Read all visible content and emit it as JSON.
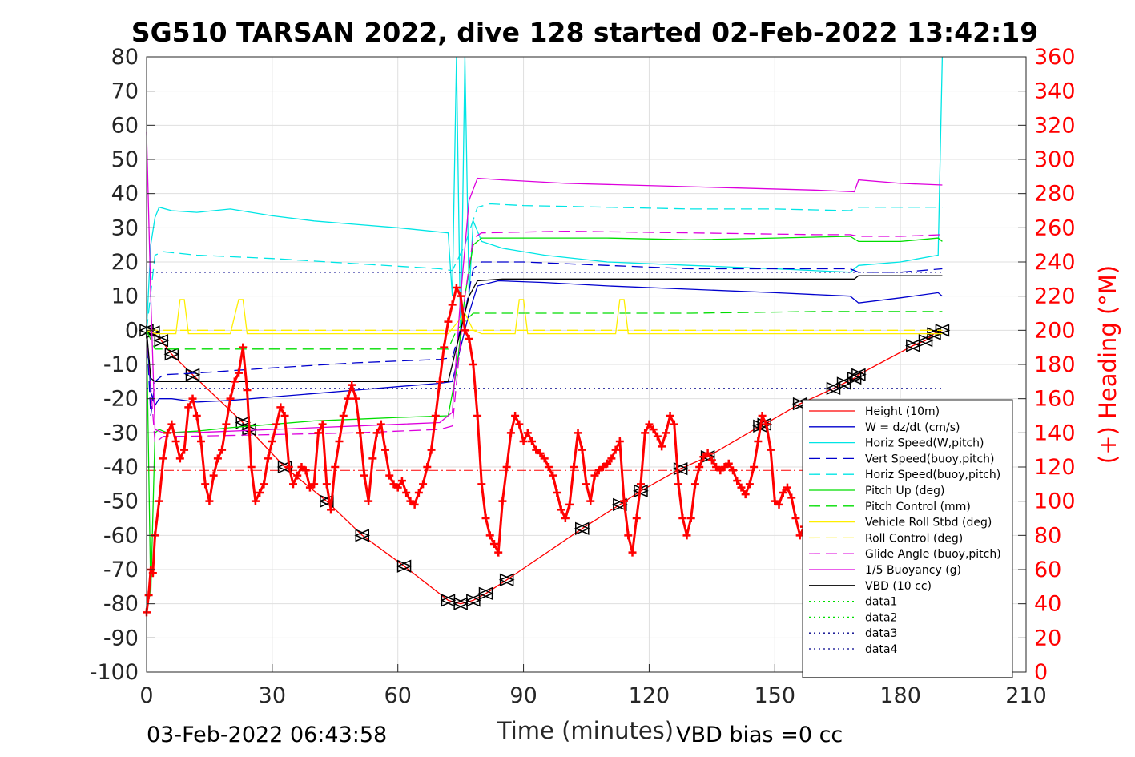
{
  "chart_data": {
    "type": "line",
    "title": "SG510 TARSAN 2022, dive 128 started 02-Feb-2022 13:42:19",
    "xlabel": "Time (minutes)",
    "ylabel_right": "(+) Heading (°M)",
    "xlim": [
      0,
      210
    ],
    "ylim": [
      -100,
      80
    ],
    "ylim_right": [
      0,
      360
    ],
    "x_ticks": [
      0,
      30,
      60,
      90,
      120,
      150,
      180,
      210
    ],
    "y_ticks": [
      -100,
      -90,
      -80,
      -70,
      -60,
      -50,
      -40,
      -30,
      -20,
      -10,
      0,
      10,
      20,
      30,
      40,
      50,
      60,
      70,
      80
    ],
    "y_ticks_right": [
      0,
      20,
      40,
      60,
      80,
      100,
      120,
      140,
      160,
      180,
      200,
      220,
      240,
      260,
      280,
      300,
      320,
      340,
      360
    ],
    "grid": true,
    "legend_position": "bottom-right",
    "footer_left": "03-Feb-2022 06:43:58",
    "footer_right": "VBD bias =0 cc",
    "series": [
      {
        "name": "Height (10m)",
        "color": "#ff0000",
        "style": "solid",
        "marker": "triangle",
        "x": [
          0,
          1.5,
          3.5,
          6,
          11,
          23,
          24.5,
          33,
          43,
          51.5,
          61.5,
          72,
          75,
          78,
          81,
          86,
          104,
          113,
          118,
          127.5,
          134,
          146.5,
          147.5,
          156,
          164,
          166.5,
          169,
          170,
          183,
          186,
          188,
          190
        ],
        "y": [
          0,
          -0.5,
          -3,
          -7,
          -13,
          -27,
          -29,
          -40,
          -50,
          -60,
          -69,
          -79,
          -80,
          -79,
          -77,
          -73,
          -58,
          -51,
          -47,
          -40.5,
          -37,
          -28,
          -27.5,
          -21.5,
          -17,
          -15.5,
          -14,
          -13,
          -4.5,
          -3,
          -1,
          0
        ]
      },
      {
        "name": "W = dz/dt (cm/s)",
        "color": "#0000cd",
        "style": "solid",
        "x": [
          0,
          1,
          2,
          3,
          6,
          12,
          20,
          30,
          40,
          50,
          60,
          70,
          73,
          75,
          77,
          79,
          84,
          95,
          110,
          130,
          150,
          168,
          170,
          180,
          189,
          190
        ],
        "y": [
          0,
          -18,
          -22,
          -20,
          -20,
          -21,
          -20.5,
          -19.5,
          -18.5,
          -17.5,
          -16.5,
          -15.5,
          -15,
          -5,
          5,
          13,
          14.5,
          14,
          13,
          12,
          11,
          10,
          8,
          9.5,
          11,
          10
        ]
      },
      {
        "name": "Horiz Speed(W,pitch)",
        "color": "#00e5e5",
        "style": "solid",
        "x": [
          0,
          1,
          2,
          3,
          6,
          12,
          20,
          30,
          40,
          50,
          60,
          72,
          73,
          74,
          75,
          76,
          77,
          78,
          80,
          85,
          95,
          110,
          130,
          150,
          168,
          170,
          180,
          189,
          190
        ],
        "y": [
          0,
          25,
          33,
          36,
          35,
          34.5,
          35.5,
          33.5,
          32,
          31,
          30,
          28.5,
          10,
          80,
          -5,
          80,
          10,
          32,
          26,
          24,
          22,
          20,
          19,
          18,
          17,
          19,
          20,
          22,
          80
        ]
      },
      {
        "name": "Vert Speed(buoy,pitch)",
        "color": "#0000cd",
        "style": "dash",
        "x": [
          0,
          1,
          2,
          4,
          12,
          30,
          50,
          70,
          73,
          76,
          78,
          80,
          90,
          110,
          130,
          150,
          168,
          170,
          180,
          190
        ],
        "y": [
          0,
          -25,
          -15,
          -13,
          -12.5,
          -11,
          -9.5,
          -8.5,
          -8,
          5,
          18,
          20,
          20,
          19,
          18,
          18,
          18,
          17,
          17,
          18
        ]
      },
      {
        "name": "Horiz Speed(buoy,pitch)",
        "color": "#00e5e5",
        "style": "dash",
        "x": [
          0,
          2,
          4,
          12,
          30,
          50,
          70,
          73,
          76,
          79,
          82,
          90,
          110,
          130,
          150,
          168,
          170,
          180,
          190
        ],
        "y": [
          0,
          22,
          23,
          22,
          21,
          19.5,
          18,
          17.5,
          25,
          36,
          37,
          36.5,
          36,
          35.5,
          35.5,
          35,
          36,
          36,
          36
        ]
      },
      {
        "name": "Pitch Up (deg)",
        "color": "#00dd00",
        "style": "solid",
        "x": [
          0,
          1,
          2,
          3,
          5,
          12,
          20,
          30,
          40,
          50,
          60,
          72,
          74,
          76,
          78,
          80,
          90,
          110,
          130,
          150,
          168,
          170,
          180,
          189,
          190
        ],
        "y": [
          0,
          -78,
          -30,
          -29,
          -30,
          -29.5,
          -28.5,
          -27.5,
          -26.5,
          -26,
          -25.5,
          -25,
          -12,
          10,
          25,
          27,
          27,
          27,
          26.5,
          27,
          27.5,
          26,
          26,
          27,
          26
        ]
      },
      {
        "name": "Pitch Control (mm)",
        "color": "#00dd00",
        "style": "dash",
        "x": [
          0,
          2,
          10,
          30,
          50,
          72,
          74,
          78,
          80,
          100,
          130,
          160,
          190
        ],
        "y": [
          0,
          -5.5,
          -5.5,
          -5.5,
          -5.5,
          -5.5,
          0,
          5,
          5,
          5,
          5,
          5.5,
          5.5
        ]
      },
      {
        "name": "Vehicle Roll Stbd (deg)",
        "color": "#ffee00",
        "style": "solid",
        "x": [
          0,
          2,
          7,
          8,
          9,
          10,
          12,
          20,
          22,
          23,
          24,
          25,
          30,
          50,
          72,
          76,
          78,
          80,
          88,
          89,
          90,
          91,
          100,
          110,
          112,
          113,
          114,
          115,
          120,
          150,
          168,
          170,
          180,
          189,
          190
        ],
        "y": [
          0,
          -1,
          -1,
          9,
          9,
          -1,
          -1,
          -1,
          9,
          9,
          -1,
          -1,
          -1,
          -1,
          -1,
          5,
          0,
          -1,
          -1,
          9,
          9,
          -1,
          -1,
          -1,
          -1,
          9,
          9,
          -1,
          -1,
          -1,
          -1,
          -1,
          -1,
          -1,
          -1
        ]
      },
      {
        "name": "Roll Control (deg)",
        "color": "#ffee00",
        "style": "dash",
        "x": [
          0,
          10,
          30,
          60,
          90,
          120,
          150,
          190
        ],
        "y": [
          0,
          0,
          0,
          0,
          0,
          0,
          0,
          0
        ]
      },
      {
        "name": "Glide Angle (buoy,pitch)",
        "color": "#dd00dd",
        "style": "dash",
        "x": [
          0,
          2,
          4,
          10,
          30,
          50,
          70,
          73,
          76,
          78,
          80,
          100,
          130,
          160,
          168,
          170,
          180,
          190
        ],
        "y": [
          0,
          -33,
          -31,
          -31,
          -30.5,
          -30,
          -29,
          -28,
          10,
          27,
          28.5,
          29,
          28.5,
          28,
          28,
          27.5,
          27.5,
          28
        ]
      },
      {
        "name": "1/5 Buoyancy (g)",
        "color": "#dd00dd",
        "style": "solid",
        "x": [
          0,
          1,
          2,
          4,
          10,
          30,
          50,
          70,
          73,
          75,
          77,
          79,
          85,
          100,
          130,
          160,
          169,
          170,
          180,
          190
        ],
        "y": [
          58,
          10,
          -29,
          -30,
          -30,
          -29,
          -28,
          -27,
          -24,
          10,
          38,
          44.5,
          44,
          43,
          42,
          41,
          40.5,
          44,
          43,
          42.5
        ]
      },
      {
        "name": "VBD (10 cc)",
        "color": "#000000",
        "style": "solid",
        "x": [
          0,
          1,
          2,
          4,
          12,
          40,
          72,
          74,
          77,
          79,
          85,
          100,
          130,
          160,
          169,
          170,
          190
        ],
        "y": [
          0,
          -14,
          -15,
          -15,
          -15,
          -15,
          -15,
          -5,
          10,
          14.5,
          15,
          15,
          15,
          15,
          15,
          16,
          16
        ]
      },
      {
        "name": "data1",
        "color": "#00dd00",
        "style": "dot",
        "x": [],
        "y": []
      },
      {
        "name": "data2",
        "color": "#00dd00",
        "style": "dot",
        "x": [],
        "y": []
      },
      {
        "name": "data3",
        "color": "#00008b",
        "style": "dot",
        "x": [
          0,
          190
        ],
        "y": [
          17,
          17
        ]
      },
      {
        "name": "data4",
        "color": "#00008b",
        "style": "dot",
        "x": [
          0,
          190
        ],
        "y": [
          -17,
          -17
        ]
      }
    ],
    "heading_series": {
      "color": "#ff0000",
      "marker": "plus",
      "axis": "right",
      "x": [
        0,
        0.5,
        1,
        1.5,
        2,
        3,
        4,
        5,
        6,
        7,
        8,
        9,
        10,
        11,
        12,
        13,
        14,
        15,
        16,
        17,
        18,
        19,
        20,
        21,
        22,
        23,
        24,
        25,
        26,
        27,
        28,
        29,
        30,
        31,
        32,
        33,
        34,
        35,
        36,
        37,
        38,
        39,
        40,
        41,
        42,
        43,
        44,
        45,
        46,
        47,
        48,
        49,
        50,
        51,
        52,
        53,
        54,
        55,
        56,
        57,
        58,
        59,
        60,
        61,
        62,
        63,
        64,
        65,
        66,
        67,
        68,
        69,
        70,
        71,
        72,
        73,
        74,
        75,
        76,
        77,
        78,
        79,
        80,
        81,
        82,
        83,
        84,
        85,
        86,
        87,
        88,
        89,
        90,
        91,
        92,
        93,
        94,
        95,
        96,
        97,
        98,
        99,
        100,
        101,
        102,
        103,
        104,
        105,
        106,
        107,
        108,
        109,
        110,
        111,
        112,
        113,
        114,
        115,
        116,
        117,
        118,
        119,
        120,
        121,
        122,
        123,
        124,
        125,
        126,
        127,
        128,
        129,
        130,
        131,
        132,
        133,
        134,
        135,
        136,
        137,
        138,
        139,
        140,
        141,
        142,
        143,
        144,
        145,
        146,
        147,
        148,
        149,
        150,
        151,
        152,
        153,
        154,
        155,
        156,
        157
      ],
      "y": [
        35,
        45,
        60,
        58,
        80,
        100,
        125,
        140,
        145,
        135,
        125,
        130,
        155,
        160,
        150,
        135,
        110,
        100,
        115,
        125,
        130,
        145,
        160,
        170,
        175,
        190,
        165,
        120,
        100,
        105,
        110,
        125,
        135,
        145,
        155,
        150,
        120,
        110,
        115,
        120,
        118,
        108,
        110,
        140,
        145,
        110,
        95,
        120,
        135,
        150,
        160,
        168,
        160,
        140,
        115,
        100,
        125,
        140,
        145,
        130,
        115,
        110,
        108,
        112,
        105,
        100,
        98,
        105,
        110,
        120,
        130,
        150,
        170,
        190,
        205,
        215,
        225,
        220,
        200,
        195,
        180,
        150,
        110,
        90,
        80,
        75,
        70,
        100,
        120,
        140,
        150,
        145,
        135,
        140,
        135,
        130,
        128,
        125,
        120,
        115,
        105,
        95,
        90,
        98,
        120,
        140,
        130,
        110,
        100,
        115,
        118,
        120,
        122,
        125,
        130,
        135,
        100,
        80,
        70,
        90,
        110,
        140,
        145,
        142,
        138,
        132,
        140,
        150,
        145,
        110,
        90,
        80,
        90,
        110,
        120,
        126,
        128,
        124,
        120,
        118,
        120,
        122,
        118,
        112,
        108,
        104,
        110,
        120,
        135,
        150,
        145,
        130,
        100,
        98,
        105,
        108,
        102,
        90,
        80,
        85
      ]
    },
    "heading_ref_line": {
      "color": "#ff0000",
      "style": "dashdot",
      "y_right": 118,
      "x": [
        0,
        190
      ]
    }
  }
}
